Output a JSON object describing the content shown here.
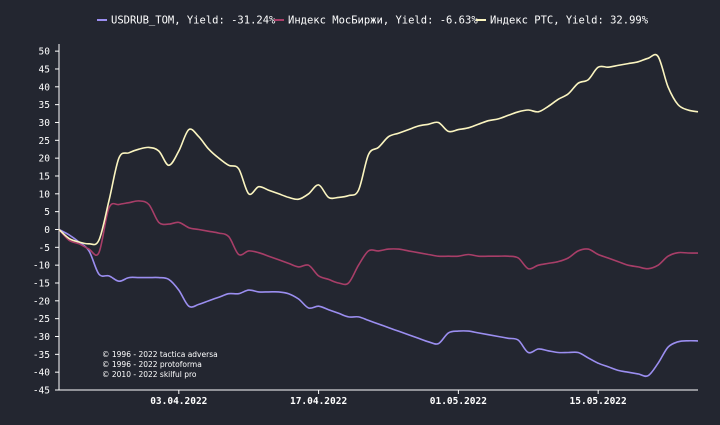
{
  "chart_data": {
    "type": "line",
    "title": "",
    "xlabel": "",
    "ylabel": "",
    "ylim": [
      -45,
      52
    ],
    "yticks": [
      50,
      45,
      40,
      35,
      30,
      25,
      20,
      15,
      10,
      5,
      0,
      -5,
      -10,
      -15,
      -20,
      -25,
      -30,
      -35,
      -40,
      -45
    ],
    "x_tick_labels": [
      "03.04.2022",
      "17.04.2022",
      "01.05.2022",
      "15.05.2022"
    ],
    "x_range": [
      "2022-03-22",
      "2022-05-25"
    ],
    "grid": false,
    "legend_position": "top",
    "series": [
      {
        "name": "USDRUB_TOM",
        "legend_label": "USDRUB_TOM, Yield: -31.24%",
        "color": "#9b8ef0",
        "x": [
          "2022-03-22",
          "2022-03-23",
          "2022-03-24",
          "2022-03-25",
          "2022-03-26",
          "2022-03-27",
          "2022-03-28",
          "2022-03-29",
          "2022-03-30",
          "2022-03-31",
          "2022-04-01",
          "2022-04-02",
          "2022-04-03",
          "2022-04-04",
          "2022-04-05",
          "2022-04-06",
          "2022-04-07",
          "2022-04-08",
          "2022-04-09",
          "2022-04-10",
          "2022-04-11",
          "2022-04-12",
          "2022-04-13",
          "2022-04-14",
          "2022-04-15",
          "2022-04-16",
          "2022-04-17",
          "2022-04-18",
          "2022-04-19",
          "2022-04-20",
          "2022-04-21",
          "2022-04-22",
          "2022-04-23",
          "2022-04-24",
          "2022-04-25",
          "2022-04-26",
          "2022-04-27",
          "2022-04-28",
          "2022-04-29",
          "2022-04-30",
          "2022-05-01",
          "2022-05-02",
          "2022-05-03",
          "2022-05-04",
          "2022-05-05",
          "2022-05-06",
          "2022-05-07",
          "2022-05-08",
          "2022-05-09",
          "2022-05-10",
          "2022-05-11",
          "2022-05-12",
          "2022-05-13",
          "2022-05-14",
          "2022-05-15",
          "2022-05-16",
          "2022-05-17",
          "2022-05-18",
          "2022-05-19",
          "2022-05-20",
          "2022-05-21",
          "2022-05-22",
          "2022-05-23",
          "2022-05-24",
          "2022-05-25"
        ],
        "values": [
          0,
          -1.5,
          -3.5,
          -6,
          -12.5,
          -13,
          -14.5,
          -13.5,
          -13.5,
          -13.5,
          -13.5,
          -14,
          -17,
          -21.5,
          -21,
          -20,
          -19,
          -18,
          -18,
          -17,
          -17.5,
          -17.5,
          -17.5,
          -18,
          -19.5,
          -22,
          -21.5,
          -22.5,
          -23.5,
          -24.5,
          -24.5,
          -25.5,
          -26.5,
          -27.5,
          -28.5,
          -29.5,
          -30.5,
          -31.5,
          -32,
          -29,
          -28.5,
          -28.5,
          -29,
          -29.5,
          -30,
          -30.5,
          -31,
          -34.5,
          -33.5,
          -34,
          -34.5,
          -34.5,
          -34.5,
          -36,
          -37.5,
          -38.5,
          -39.5,
          -40,
          -40.5,
          -41,
          -37.5,
          -33,
          -31.5,
          -31.2,
          -31.24
        ]
      },
      {
        "name": "Индекс МосБиржи",
        "legend_label": "Индекс МосБиржи, Yield: -6.63%",
        "color": "#a83e68",
        "x": [
          "2022-03-22",
          "2022-03-23",
          "2022-03-24",
          "2022-03-25",
          "2022-03-26",
          "2022-03-27",
          "2022-03-28",
          "2022-03-29",
          "2022-03-30",
          "2022-03-31",
          "2022-04-01",
          "2022-04-02",
          "2022-04-03",
          "2022-04-04",
          "2022-04-05",
          "2022-04-06",
          "2022-04-07",
          "2022-04-08",
          "2022-04-09",
          "2022-04-10",
          "2022-04-11",
          "2022-04-12",
          "2022-04-13",
          "2022-04-14",
          "2022-04-15",
          "2022-04-16",
          "2022-04-17",
          "2022-04-18",
          "2022-04-19",
          "2022-04-20",
          "2022-04-21",
          "2022-04-22",
          "2022-04-23",
          "2022-04-24",
          "2022-04-25",
          "2022-04-26",
          "2022-04-27",
          "2022-04-28",
          "2022-04-29",
          "2022-04-30",
          "2022-05-01",
          "2022-05-02",
          "2022-05-03",
          "2022-05-04",
          "2022-05-05",
          "2022-05-06",
          "2022-05-07",
          "2022-05-08",
          "2022-05-09",
          "2022-05-10",
          "2022-05-11",
          "2022-05-12",
          "2022-05-13",
          "2022-05-14",
          "2022-05-15",
          "2022-05-16",
          "2022-05-17",
          "2022-05-18",
          "2022-05-19",
          "2022-05-20",
          "2022-05-21",
          "2022-05-22",
          "2022-05-23",
          "2022-05-24",
          "2022-05-25"
        ],
        "values": [
          0,
          -3,
          -4,
          -5.5,
          -6.5,
          6,
          7,
          7.5,
          8,
          7,
          2,
          1.5,
          2,
          0.5,
          0,
          -0.5,
          -1,
          -2,
          -7,
          -6,
          -6.5,
          -7.5,
          -8.5,
          -9.5,
          -10.5,
          -10,
          -13,
          -14,
          -15,
          -15,
          -10,
          -6,
          -6,
          -5.5,
          -5.5,
          -6,
          -6.5,
          -7,
          -7.5,
          -7.5,
          -7.5,
          -7,
          -7.5,
          -7.5,
          -7.5,
          -7.5,
          -8,
          -11,
          -10,
          -9.5,
          -9,
          -8,
          -6,
          -5.5,
          -7,
          -8,
          -9,
          -10,
          -10.5,
          -11,
          -10,
          -7.5,
          -6.5,
          -6.6,
          -6.63
        ]
      },
      {
        "name": "Индекс РТС",
        "legend_label": "Индекс РТС, Yield: 32.99%",
        "color": "#fbf5c0",
        "x": [
          "2022-03-22",
          "2022-03-23",
          "2022-03-24",
          "2022-03-25",
          "2022-03-26",
          "2022-03-27",
          "2022-03-28",
          "2022-03-29",
          "2022-03-30",
          "2022-03-31",
          "2022-04-01",
          "2022-04-02",
          "2022-04-03",
          "2022-04-04",
          "2022-04-05",
          "2022-04-06",
          "2022-04-07",
          "2022-04-08",
          "2022-04-09",
          "2022-04-10",
          "2022-04-11",
          "2022-04-12",
          "2022-04-13",
          "2022-04-14",
          "2022-04-15",
          "2022-04-16",
          "2022-04-17",
          "2022-04-18",
          "2022-04-19",
          "2022-04-20",
          "2022-04-21",
          "2022-04-22",
          "2022-04-23",
          "2022-04-24",
          "2022-04-25",
          "2022-04-26",
          "2022-04-27",
          "2022-04-28",
          "2022-04-29",
          "2022-04-30",
          "2022-05-01",
          "2022-05-02",
          "2022-05-03",
          "2022-05-04",
          "2022-05-05",
          "2022-05-06",
          "2022-05-07",
          "2022-05-08",
          "2022-05-09",
          "2022-05-10",
          "2022-05-11",
          "2022-05-12",
          "2022-05-13",
          "2022-05-14",
          "2022-05-15",
          "2022-05-16",
          "2022-05-17",
          "2022-05-18",
          "2022-05-19",
          "2022-05-20",
          "2022-05-21",
          "2022-05-22",
          "2022-05-23",
          "2022-05-24",
          "2022-05-25"
        ],
        "values": [
          0,
          -2.5,
          -3.5,
          -4,
          -3,
          8,
          20,
          21.5,
          22.5,
          23,
          22,
          18,
          22,
          28,
          26,
          22.5,
          20,
          18,
          17,
          10,
          12,
          11,
          10,
          9,
          8.5,
          10,
          12.5,
          9,
          9,
          9.5,
          11,
          21,
          23,
          26,
          27,
          28,
          29,
          29.5,
          30,
          27.5,
          28,
          28.5,
          29.5,
          30.5,
          31,
          32,
          33,
          33.5,
          33,
          34.5,
          36.5,
          38,
          41,
          42,
          45.5,
          45.5,
          46,
          46.5,
          47,
          48,
          48.5,
          40,
          35,
          33.5,
          32.99
        ]
      }
    ]
  },
  "copyright_lines": [
    "© 1996 - 2022 tactica adversa",
    "© 1996 - 2022 protoforma",
    "© 2010 - 2022 skilful pro"
  ]
}
